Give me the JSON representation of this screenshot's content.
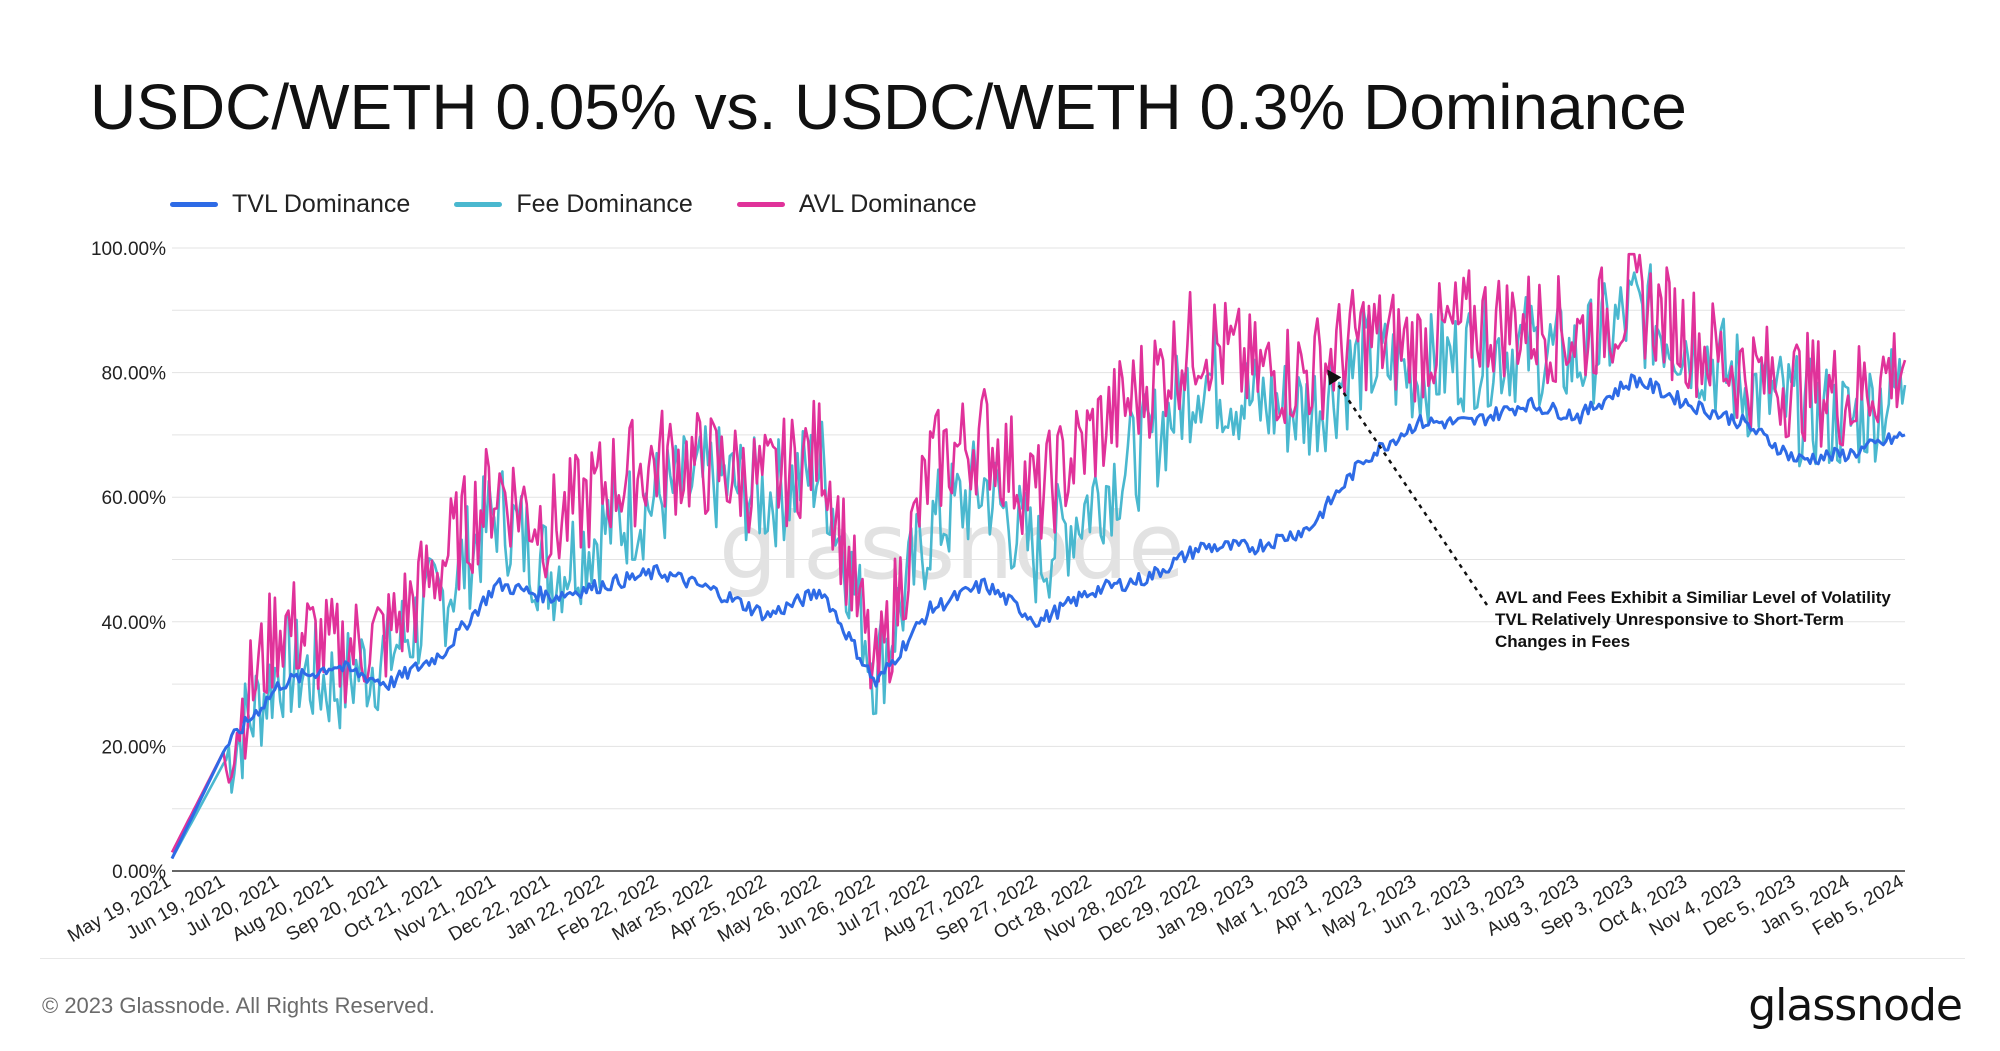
{
  "title": "USDC/WETH 0.05% vs. USDC/WETH 0.3% Dominance",
  "watermark": "glassnode",
  "footer": {
    "copyright": "© 2023 Glassnode. All Rights Reserved.",
    "brand": "glassnode"
  },
  "annotation": {
    "lines": [
      "AVL and Fees Exhibit a Similiar Level of Volatility",
      "TVL Relatively Unresponsive to Short-Term",
      "Changes in Fees"
    ],
    "points_to_date": "Mar 1, 2023"
  },
  "colors": {
    "tvl": "#2e6be6",
    "fee": "#4ab8cf",
    "avl": "#e0329a",
    "grid": "#e3e3e3"
  },
  "chart_data": {
    "type": "line",
    "title": "USDC/WETH 0.05% vs. USDC/WETH 0.3% Dominance",
    "xlabel": "",
    "ylabel": "",
    "ylim": [
      0,
      100
    ],
    "yticks": [
      "0.00%",
      "20.00%",
      "40.00%",
      "60.00%",
      "80.00%",
      "100.00%"
    ],
    "grid": true,
    "legend_position": "top-left",
    "categories": [
      "May 19, 2021",
      "Jun 19, 2021",
      "Jul 20, 2021",
      "Aug 20, 2021",
      "Sep 20, 2021",
      "Oct 21, 2021",
      "Nov 21, 2021",
      "Dec 22, 2021",
      "Jan 22, 2022",
      "Feb 22, 2022",
      "Mar 25, 2022",
      "Apr 25, 2022",
      "May 26, 2022",
      "Jun 26, 2022",
      "Jul 27, 2022",
      "Aug 27, 2022",
      "Sep 27, 2022",
      "Oct 28, 2022",
      "Nov 28, 2022",
      "Dec 29, 2022",
      "Jan 29, 2023",
      "Mar 1, 2023",
      "Apr 1, 2023",
      "May 2, 2023",
      "Jun 2, 2023",
      "Jul 3, 2023",
      "Aug 3, 2023",
      "Sep 3, 2023",
      "Oct 4, 2023",
      "Nov 4, 2023",
      "Dec 5, 2023",
      "Jan 5, 2024",
      "Feb 5, 2024"
    ],
    "series": [
      {
        "name": "TVL Dominance",
        "values": [
          2,
          20,
          30,
          33,
          30,
          35,
          46,
          44,
          46,
          48,
          45,
          41,
          45,
          30,
          42,
          46,
          40,
          45,
          47,
          52,
          52,
          55,
          66,
          72,
          72,
          75,
          73,
          79,
          75,
          72,
          66,
          67,
          70
        ]
      },
      {
        "name": "Fee Dominance",
        "values": [
          2,
          18,
          33,
          30,
          35,
          44,
          58,
          48,
          55,
          60,
          63,
          60,
          65,
          32,
          55,
          62,
          50,
          60,
          68,
          80,
          75,
          74,
          82,
          80,
          83,
          84,
          82,
          90,
          85,
          78,
          74,
          72,
          78
        ]
      },
      {
        "name": "AVL Dominance",
        "values": [
          3,
          20,
          40,
          35,
          38,
          50,
          62,
          55,
          62,
          66,
          65,
          62,
          68,
          30,
          65,
          70,
          60,
          70,
          78,
          86,
          80,
          80,
          86,
          84,
          88,
          88,
          86,
          92,
          86,
          80,
          78,
          76,
          82
        ]
      }
    ]
  }
}
